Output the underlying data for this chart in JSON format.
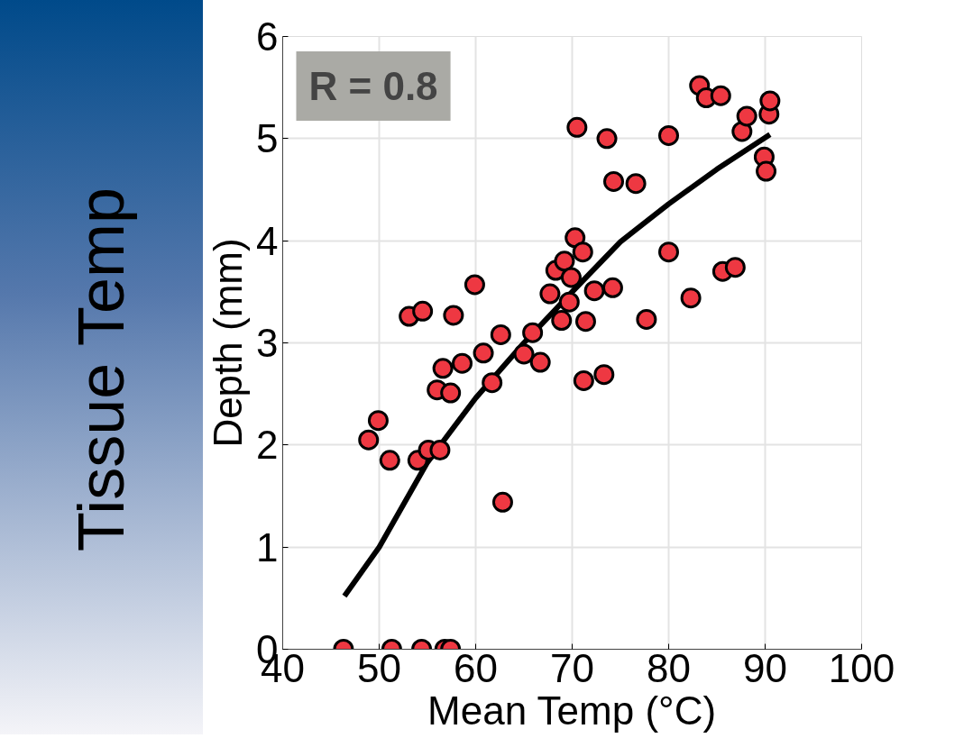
{
  "chart_data": {
    "type": "scatter",
    "title": "Tissue Temp",
    "xlabel": "Mean Temp (°C)",
    "ylabel": "Depth (mm)",
    "annotations": [
      "R = 0.8"
    ],
    "xlim": [
      40,
      100
    ],
    "xticks": [
      40,
      50,
      60,
      70,
      80,
      90,
      100
    ],
    "ylim": [
      0,
      6
    ],
    "yticks": [
      0,
      1,
      2,
      3,
      4,
      5,
      6
    ],
    "grid": true,
    "marker": "circle",
    "series": [
      {
        "color": "#ee3842",
        "x": [
          46.3,
          51.3,
          54.4,
          56.8,
          57.4,
          48.9,
          49.9,
          51.1,
          54.0,
          55.1,
          56.3,
          53.1,
          54.5,
          57.7,
          56.0,
          56.6,
          57.4,
          58.6,
          59.9,
          60.8,
          61.7,
          62.6,
          62.8,
          65.0,
          65.9,
          66.7,
          67.7,
          68.3,
          68.9,
          69.2,
          69.7,
          69.9,
          70.3,
          70.5,
          71.1,
          71.4,
          71.2,
          72.3,
          73.3,
          73.6,
          74.3,
          74.2,
          76.6,
          77.7,
          80.0,
          80.0,
          82.3,
          83.2,
          83.9,
          85.4,
          85.6,
          86.9,
          87.6,
          88.1,
          89.9,
          90.1,
          90.4,
          90.5
        ],
        "values": [
          0,
          0,
          0,
          0,
          0,
          2.05,
          2.24,
          1.85,
          1.85,
          1.95,
          1.95,
          3.26,
          3.31,
          3.27,
          2.54,
          2.75,
          2.51,
          2.8,
          3.57,
          2.9,
          2.61,
          3.08,
          1.44,
          2.89,
          3.1,
          2.81,
          3.48,
          3.71,
          3.22,
          3.8,
          3.4,
          3.64,
          4.03,
          5.11,
          3.89,
          3.21,
          2.63,
          3.51,
          2.69,
          5.0,
          4.58,
          3.54,
          4.56,
          3.23,
          5.03,
          3.89,
          3.44,
          5.52,
          5.4,
          5.42,
          3.7,
          3.74,
          5.07,
          5.22,
          4.82,
          4.68,
          5.24,
          5.37
        ]
      },
      {
        "type": "line",
        "marker": "none",
        "color": "#000000",
        "x": [
          46.4,
          50,
          55,
          60,
          65,
          70,
          75,
          80,
          85,
          90.5
        ],
        "values": [
          0.52,
          1.0,
          1.83,
          2.46,
          3.0,
          3.5,
          3.99,
          4.36,
          4.7,
          5.04
        ]
      }
    ]
  }
}
